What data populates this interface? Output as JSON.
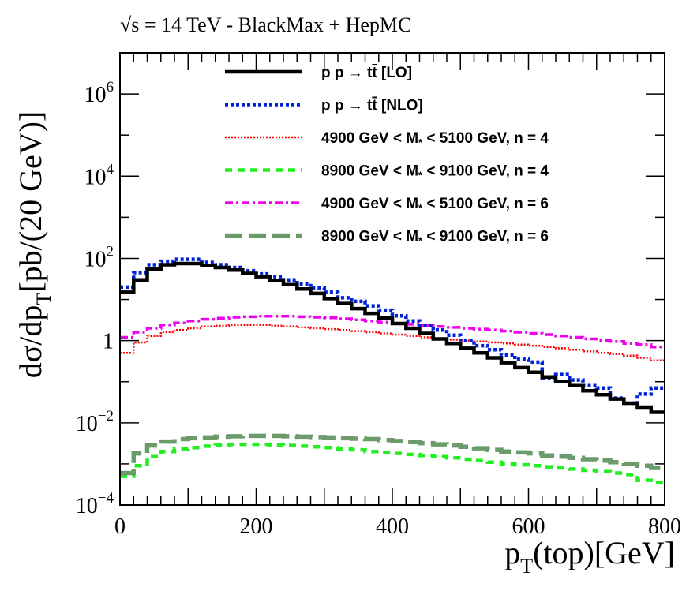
{
  "chart_data": {
    "type": "line",
    "title": "√s = 14 TeV - BlackMax + HepMC",
    "xlabel": "p_T(top)[GeV]",
    "ylabel": "dσ/dp_T[pb/(20 GeV)]",
    "xlim": [
      0,
      800
    ],
    "ylim": [
      0.0001,
      10000000
    ],
    "yscale": "log",
    "x_ticks": [
      {
        "value": 0,
        "label": "0"
      },
      {
        "value": 200,
        "label": "200"
      },
      {
        "value": 400,
        "label": "400"
      },
      {
        "value": 600,
        "label": "600"
      },
      {
        "value": 800,
        "label": "800"
      }
    ],
    "y_ticks": [
      {
        "value": 0.0001,
        "base": "10",
        "exp": "−4"
      },
      {
        "value": 0.01,
        "base": "10",
        "exp": "−2"
      },
      {
        "value": 1,
        "base": "1",
        "exp": ""
      },
      {
        "value": 100,
        "base": "10",
        "exp": "2"
      },
      {
        "value": 10000,
        "base": "10",
        "exp": "4"
      },
      {
        "value": 1000000,
        "base": "10",
        "exp": "6"
      }
    ],
    "bin_edges": [
      0,
      20,
      40,
      60,
      80,
      100,
      120,
      140,
      160,
      180,
      200,
      220,
      240,
      260,
      280,
      300,
      320,
      340,
      360,
      380,
      400,
      420,
      440,
      460,
      480,
      500,
      520,
      540,
      560,
      580,
      600,
      620,
      640,
      660,
      680,
      700,
      720,
      740,
      760,
      780,
      800
    ],
    "grid": false,
    "legend_position": "top-right",
    "series": [
      {
        "name": "p p → tt̄ [LO]",
        "color": "#000000",
        "style": "solid",
        "values": [
          15,
          30,
          55,
          70,
          75,
          75,
          68,
          60,
          52,
          43,
          36,
          29,
          23,
          18,
          14,
          10.5,
          8,
          6,
          4.6,
          3.5,
          2.6,
          2,
          1.5,
          1.1,
          0.85,
          0.65,
          0.5,
          0.38,
          0.29,
          0.22,
          0.17,
          0.13,
          0.1,
          0.08,
          0.06,
          0.048,
          0.038,
          0.03,
          0.024,
          0.018
        ]
      },
      {
        "name": "p p → tt̄ [NLO]",
        "color": "#0022dd",
        "style": "dotted",
        "values": [
          20,
          45,
          70,
          85,
          95,
          95,
          80,
          70,
          60,
          50,
          42,
          35,
          30,
          24,
          19,
          15,
          11,
          9,
          7,
          5.5,
          4,
          3,
          2.3,
          1.8,
          1.35,
          1.0,
          0.75,
          0.6,
          0.45,
          0.35,
          0.3,
          0.12,
          0.15,
          0.11,
          0.08,
          0.07,
          0.04,
          0.03,
          0.05,
          0.07
        ]
      },
      {
        "name": "4900 GeV < M* < 5100 GeV, n = 4",
        "color": "#ff0000",
        "style": "dense-dotted",
        "values": [
          0.5,
          0.9,
          1.3,
          1.6,
          1.8,
          2.0,
          2.2,
          2.3,
          2.4,
          2.4,
          2.4,
          2.3,
          2.2,
          2.1,
          2.0,
          1.9,
          1.8,
          1.7,
          1.6,
          1.5,
          1.4,
          1.3,
          1.2,
          1.1,
          1.05,
          1.0,
          0.95,
          0.9,
          0.85,
          0.8,
          0.75,
          0.7,
          0.65,
          0.6,
          0.55,
          0.5,
          0.47,
          0.43,
          0.38,
          0.33
        ]
      },
      {
        "name": "8900 GeV < M* < 9100 GeV, n = 4",
        "color": "#22ee22",
        "style": "dashed",
        "values": [
          0.0005,
          0.0009,
          0.0015,
          0.002,
          0.0023,
          0.0025,
          0.0027,
          0.0029,
          0.003,
          0.003,
          0.003,
          0.0029,
          0.0028,
          0.0027,
          0.0026,
          0.0025,
          0.0023,
          0.0022,
          0.002,
          0.0019,
          0.0018,
          0.0017,
          0.0016,
          0.0015,
          0.0014,
          0.0013,
          0.0012,
          0.0011,
          0.001,
          0.00095,
          0.0009,
          0.00085,
          0.0008,
          0.00075,
          0.0007,
          0.00065,
          0.0006,
          0.00055,
          0.0004,
          0.00035
        ]
      },
      {
        "name": "4900 GeV < M* < 5100 GeV, n = 6",
        "color": "#ee00ee",
        "style": "dash-dot",
        "values": [
          1.2,
          1.6,
          2.0,
          2.4,
          2.7,
          3.0,
          3.3,
          3.5,
          3.7,
          3.8,
          3.9,
          3.9,
          3.9,
          3.8,
          3.7,
          3.6,
          3.4,
          3.2,
          3.0,
          2.8,
          2.6,
          2.5,
          2.3,
          2.2,
          2.1,
          2.0,
          1.9,
          1.8,
          1.7,
          1.6,
          1.5,
          1.4,
          1.3,
          1.2,
          1.1,
          1.0,
          0.95,
          0.85,
          0.8,
          0.7
        ]
      },
      {
        "name": "8900 GeV < M* < 9100 GeV, n = 6",
        "color": "#6b9b6b",
        "style": "long-dashed",
        "values": [
          0.0006,
          0.0018,
          0.0028,
          0.0035,
          0.004,
          0.0042,
          0.0044,
          0.0046,
          0.0047,
          0.0048,
          0.0048,
          0.0048,
          0.0047,
          0.0046,
          0.0045,
          0.0044,
          0.0042,
          0.0041,
          0.004,
          0.0038,
          0.0036,
          0.0034,
          0.0032,
          0.003,
          0.0028,
          0.0026,
          0.0024,
          0.0022,
          0.002,
          0.0019,
          0.0018,
          0.0016,
          0.0015,
          0.0014,
          0.0013,
          0.0012,
          0.0011,
          0.001,
          0.0009,
          0.0008
        ]
      }
    ],
    "legend": [
      {
        "prefix": "p p → t",
        "tbar": "t",
        "suffix": " [LO]"
      },
      {
        "prefix": "p p → t",
        "tbar": "t",
        "suffix": " [NLO]"
      },
      {
        "prefix": "4900 GeV < M",
        "sub": "*",
        "suffix": " < 5100 GeV, n = 4"
      },
      {
        "prefix": "8900 GeV < M",
        "sub": "*",
        "suffix": " < 9100 GeV, n = 4"
      },
      {
        "prefix": "4900 GeV < M",
        "sub": "*",
        "suffix": " < 5100 GeV, n = 6"
      },
      {
        "prefix": "8900 GeV < M",
        "sub": "*",
        "suffix": " < 9100 GeV, n = 6"
      }
    ]
  }
}
